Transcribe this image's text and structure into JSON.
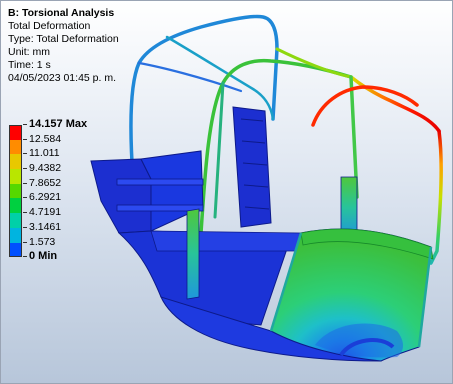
{
  "analysis": {
    "title": "B: Torsional Analysis",
    "result": "Total Deformation",
    "type": "Type: Total Deformation",
    "unit": "Unit: mm",
    "time": "Time: 1 s",
    "date": "04/05/2023 01:45 p. m."
  },
  "legend": {
    "labels": [
      "14.157 Max",
      "12.584",
      "11.011",
      "9.4382",
      "7.8652",
      "6.2921",
      "4.7191",
      "3.1461",
      "1.573",
      "0 Min"
    ],
    "band_colors": [
      "#ff0000",
      "#ff8c00",
      "#e8c800",
      "#b9e600",
      "#56d800",
      "#00d040",
      "#00d0a8",
      "#00b4e0",
      "#0050ff"
    ]
  },
  "colors": {
    "frame_blue": "#1c2fd0",
    "frame_dark": "#0d1a8a"
  }
}
